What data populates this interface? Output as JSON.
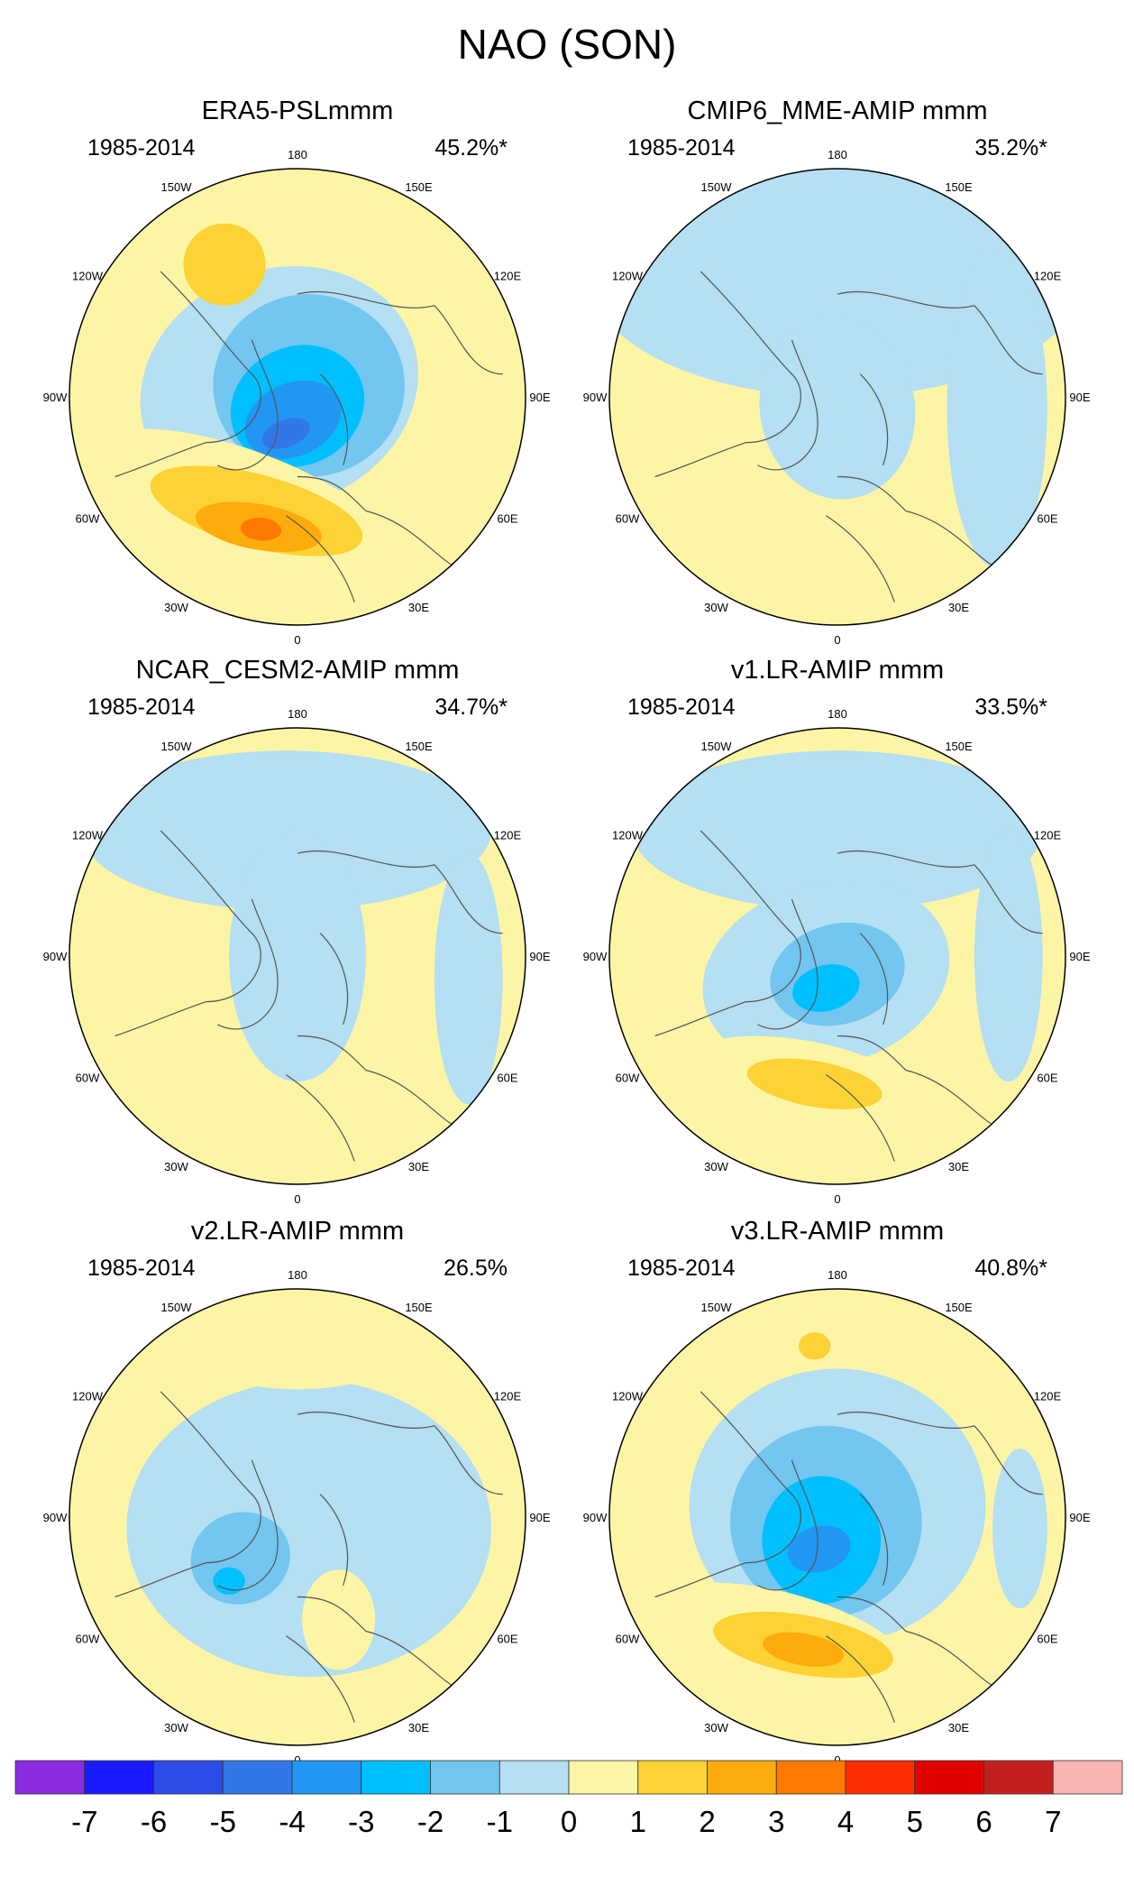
{
  "figure_title": "NAO (SON)",
  "colors": {
    "land_outline": "#555555",
    "panel_border": "#000000",
    "palette": [
      "#8a2be2",
      "#1a1aff",
      "#2d4be6",
      "#3277e8",
      "#2196f3",
      "#00bfff",
      "#72c6f0",
      "#b5dff2",
      "#fdf5a6",
      "#fdd235",
      "#fdac0b",
      "#ff7800",
      "#ff2d00",
      "#e00000",
      "#c41f1f",
      "#f9b4b4"
    ]
  },
  "chart_data": [
    {
      "type": "polar-contour-map",
      "title": "ERA5-PSLmmm",
      "period": "1985-2014",
      "explained_variance": "45.2%*",
      "lon_labels": [
        "180",
        "150E",
        "120E",
        "90E",
        "60E",
        "30E",
        "0",
        "30W",
        "60W",
        "90W",
        "120W",
        "150W"
      ],
      "dominant_sign": "negative-north / positive-south",
      "min_value": -5,
      "max_value": 4
    },
    {
      "type": "polar-contour-map",
      "title": "CMIP6_MME-AMIP  mmm",
      "period": "1985-2014",
      "explained_variance": "35.2%*",
      "lon_labels": [
        "180",
        "150E",
        "120E",
        "90E",
        "60E",
        "30E",
        "0",
        "30W",
        "60W",
        "90W",
        "120W",
        "150W"
      ],
      "min_value": -1,
      "max_value": 1
    },
    {
      "type": "polar-contour-map",
      "title": "NCAR_CESM2-AMIP  mmm",
      "period": "1985-2014",
      "explained_variance": "34.7%*",
      "lon_labels": [
        "180",
        "150E",
        "120E",
        "90E",
        "60E",
        "30E",
        "0",
        "30W",
        "60W",
        "90W",
        "120W",
        "150W"
      ],
      "min_value": -1,
      "max_value": 1
    },
    {
      "type": "polar-contour-map",
      "title": "v1.LR-AMIP  mmm",
      "period": "1985-2014",
      "explained_variance": "33.5%*",
      "lon_labels": [
        "180",
        "150E",
        "120E",
        "90E",
        "60E",
        "30E",
        "0",
        "30W",
        "60W",
        "90W",
        "120W",
        "150W"
      ],
      "min_value": -3,
      "max_value": 2
    },
    {
      "type": "polar-contour-map",
      "title": "v2.LR-AMIP  mmm",
      "period": "1985-2014",
      "explained_variance": "26.5%",
      "lon_labels": [
        "180",
        "150E",
        "120E",
        "90E",
        "60E",
        "30E",
        "0",
        "30W",
        "60W",
        "90W",
        "120W",
        "150W"
      ],
      "min_value": -3,
      "max_value": 1
    },
    {
      "type": "polar-contour-map",
      "title": "v3.LR-AMIP  mmm",
      "period": "1985-2014",
      "explained_variance": "40.8%*",
      "lon_labels": [
        "180",
        "150E",
        "120E",
        "90E",
        "60E",
        "30E",
        "0",
        "30W",
        "60W",
        "90W",
        "120W",
        "150W"
      ],
      "min_value": -5,
      "max_value": 4
    }
  ],
  "colorbar": {
    "labels": [
      "-7",
      "-6",
      "-5",
      "-4",
      "-3",
      "-2",
      "-1",
      "0",
      "1",
      "2",
      "3",
      "4",
      "5",
      "6",
      "7"
    ]
  }
}
